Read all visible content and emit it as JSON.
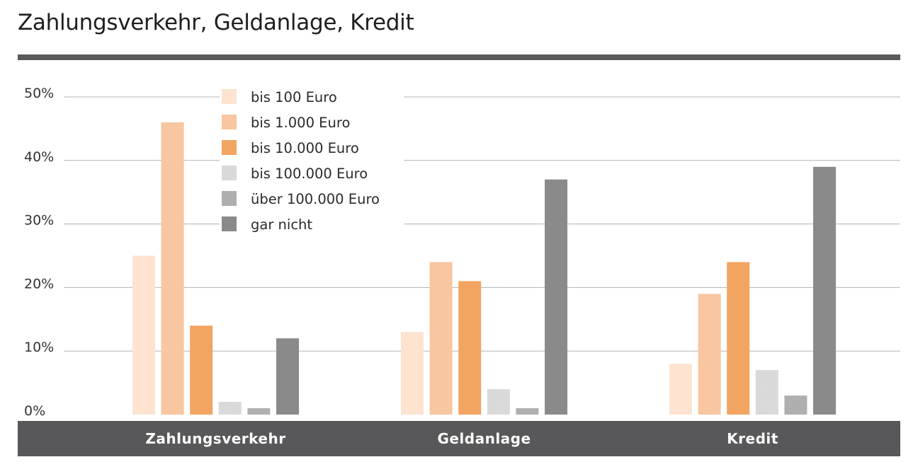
{
  "title": "Zahlungsverkehr, Geldanlage, Kredit",
  "colors": {
    "title_rule": "#5a5a5c",
    "grid": "#b3b3b3",
    "category_band": "#58585a",
    "background": "#ffffff"
  },
  "chart_data": {
    "type": "bar",
    "title": "Zahlungsverkehr, Geldanlage, Kredit",
    "xlabel": "",
    "ylabel": "",
    "ylim": [
      0,
      50
    ],
    "yticks": [
      "0%",
      "10%",
      "20%",
      "30%",
      "40%",
      "50%"
    ],
    "grid": true,
    "legend_position": "top-left",
    "categories": [
      "Zahlungsverkehr",
      "Geldanlage",
      "Kredit"
    ],
    "series": [
      {
        "name": "bis 100 Euro",
        "color": "#fde3d0",
        "pattern": "solid",
        "values": [
          25,
          13,
          8
        ]
      },
      {
        "name": "bis 1.000 Euro",
        "color": "#f8c6a0",
        "pattern": "solid",
        "values": [
          46,
          24,
          19
        ]
      },
      {
        "name": "bis 10.000 Euro",
        "color": "#f2a461",
        "pattern": "solid",
        "values": [
          14,
          21,
          24
        ]
      },
      {
        "name": "bis 100.000 Euro",
        "color": "#dcdcdc",
        "pattern": "dotted",
        "values": [
          2,
          4,
          7
        ]
      },
      {
        "name": "über 100.000 Euro",
        "color": "#b0b0b0",
        "pattern": "dotted",
        "values": [
          1,
          1,
          3
        ]
      },
      {
        "name": "gar nicht",
        "color": "#8a8a8b",
        "pattern": "solid",
        "values": [
          12,
          37,
          39
        ]
      }
    ]
  }
}
